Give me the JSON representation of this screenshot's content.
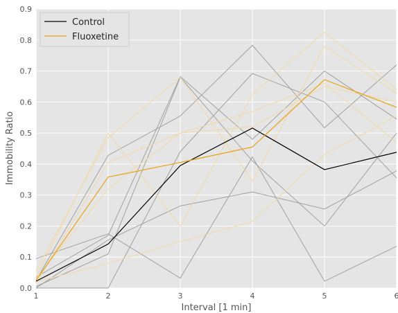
{
  "chart_data": {
    "type": "line",
    "xlabel": "Interval [1 min]",
    "ylabel": "Immobility Ratio",
    "xlim": [
      1,
      6
    ],
    "ylim": [
      0,
      0.9
    ],
    "x": [
      1,
      2,
      3,
      4,
      5,
      6
    ],
    "xticks": [
      "1",
      "2",
      "3",
      "4",
      "5",
      "6"
    ],
    "yticks": [
      "0.0",
      "0.1",
      "0.2",
      "0.3",
      "0.4",
      "0.5",
      "0.6",
      "0.7",
      "0.8",
      "0.9"
    ],
    "grid": true,
    "legend_position": "top-left",
    "colors": {
      "background": "#e5e5e5",
      "grid": "#ffffff",
      "control": "#000000",
      "fluoxetine": "#e8a317",
      "control_individual": "#a0a0a0",
      "fluoxetine_individual": "#f0d9a8"
    },
    "series": [
      {
        "name": "Control",
        "group": "control",
        "values": [
          0.022,
          0.142,
          0.395,
          0.516,
          0.382,
          0.438
        ]
      },
      {
        "name": "Fluoxetine",
        "group": "fluoxetine",
        "values": [
          0.025,
          0.358,
          0.405,
          0.455,
          0.672,
          0.583
        ]
      }
    ],
    "individual_series": [
      {
        "group": "control",
        "values": [
          0.095,
          0.175,
          0.032,
          0.423,
          0.022,
          0.135
        ]
      },
      {
        "group": "control",
        "values": [
          0.005,
          0.11,
          0.68,
          0.41,
          0.2,
          0.5
        ]
      },
      {
        "group": "control",
        "values": [
          0.025,
          0.428,
          0.555,
          0.783,
          0.517,
          0.72
        ]
      },
      {
        "group": "control",
        "values": [
          0.0,
          0.0,
          0.44,
          0.692,
          0.6,
          0.355
        ]
      },
      {
        "group": "control",
        "values": [
          0.0,
          0.155,
          0.265,
          0.31,
          0.255,
          0.378
        ]
      },
      {
        "group": "control",
        "values": [
          0.035,
          0.17,
          0.682,
          0.48,
          0.7,
          0.545
        ]
      },
      {
        "group": "fluoxetine",
        "values": [
          0.035,
          0.5,
          0.2,
          0.625,
          0.825,
          0.64
        ]
      },
      {
        "group": "fluoxetine",
        "values": [
          0.055,
          0.485,
          0.68,
          0.345,
          0.78,
          0.628
        ]
      },
      {
        "group": "fluoxetine",
        "values": [
          0.02,
          0.08,
          0.15,
          0.215,
          0.43,
          0.555
        ]
      },
      {
        "group": "fluoxetine",
        "values": [
          0.03,
          0.32,
          0.5,
          0.57,
          0.66,
          0.47
        ]
      },
      {
        "group": "fluoxetine",
        "values": [
          0.015,
          0.405,
          0.5,
          0.52,
          0.65,
          0.6
        ]
      }
    ]
  }
}
